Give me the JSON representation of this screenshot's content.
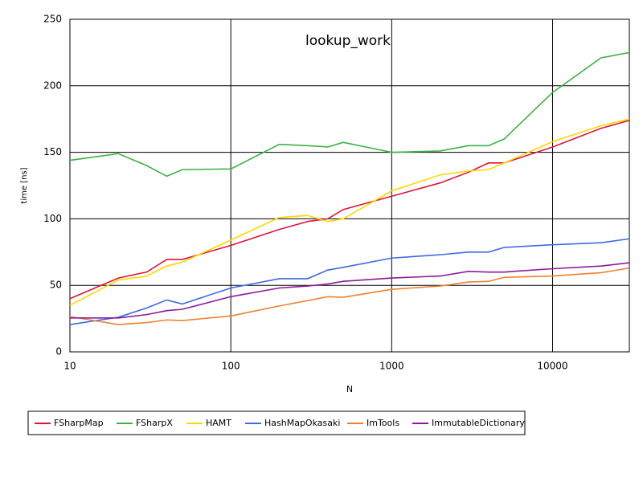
{
  "chart_data": {
    "type": "line",
    "title": "lookup_work",
    "x_label": "N",
    "y_label": "time [ns]",
    "x": [
      10,
      20,
      30,
      40,
      50,
      100,
      200,
      300,
      400,
      500,
      1000,
      2000,
      3000,
      4000,
      5000,
      10000,
      20000,
      30000
    ],
    "xscale": "log",
    "xlim": [
      10,
      30000
    ],
    "xticks": [
      10,
      100,
      1000,
      10000
    ],
    "ylim": [
      0,
      250
    ],
    "yticks": [
      0,
      50,
      100,
      150,
      200,
      250
    ],
    "grid": true,
    "legend": "bottom",
    "series": [
      {
        "name": "FSharpMap",
        "color": "#dc143c",
        "values": [
          40,
          55.5,
          60,
          69.5,
          69.5,
          80,
          92,
          98,
          100,
          107,
          117,
          127,
          135,
          142,
          142,
          154,
          168,
          174
        ]
      },
      {
        "name": "FSharpX",
        "color": "#3cb043",
        "values": [
          144,
          149,
          140,
          132,
          137,
          137.5,
          156,
          155,
          154,
          157.5,
          150,
          151,
          155,
          155,
          160,
          195,
          221,
          225
        ]
      },
      {
        "name": "HAMT",
        "color": "#ffd700",
        "values": [
          35,
          54,
          57,
          64.5,
          67.5,
          84,
          101,
          102.5,
          98,
          100,
          121,
          133,
          136,
          137,
          142,
          158,
          170,
          175
        ]
      },
      {
        "name": "HashMapOkasaki",
        "color": "#4169e1",
        "values": [
          20.5,
          26,
          33,
          39,
          36,
          48,
          55,
          55,
          61.5,
          63.5,
          70.5,
          73,
          75,
          75,
          78.5,
          80.5,
          82,
          85
        ]
      },
      {
        "name": "ImTools",
        "color": "#f08030",
        "values": [
          26.5,
          20.5,
          22,
          24,
          23.5,
          27,
          34.5,
          38.5,
          41.5,
          41,
          47,
          49.5,
          52.5,
          53,
          56,
          57,
          59.5,
          63
        ]
      },
      {
        "name": "ImmutableDictionary",
        "color": "#8b1a9b",
        "values": [
          25.5,
          25.5,
          28,
          31,
          32,
          41.5,
          48,
          49.5,
          51,
          53,
          55.5,
          57,
          60.5,
          60,
          60,
          62.5,
          64.5,
          67
        ]
      }
    ]
  }
}
